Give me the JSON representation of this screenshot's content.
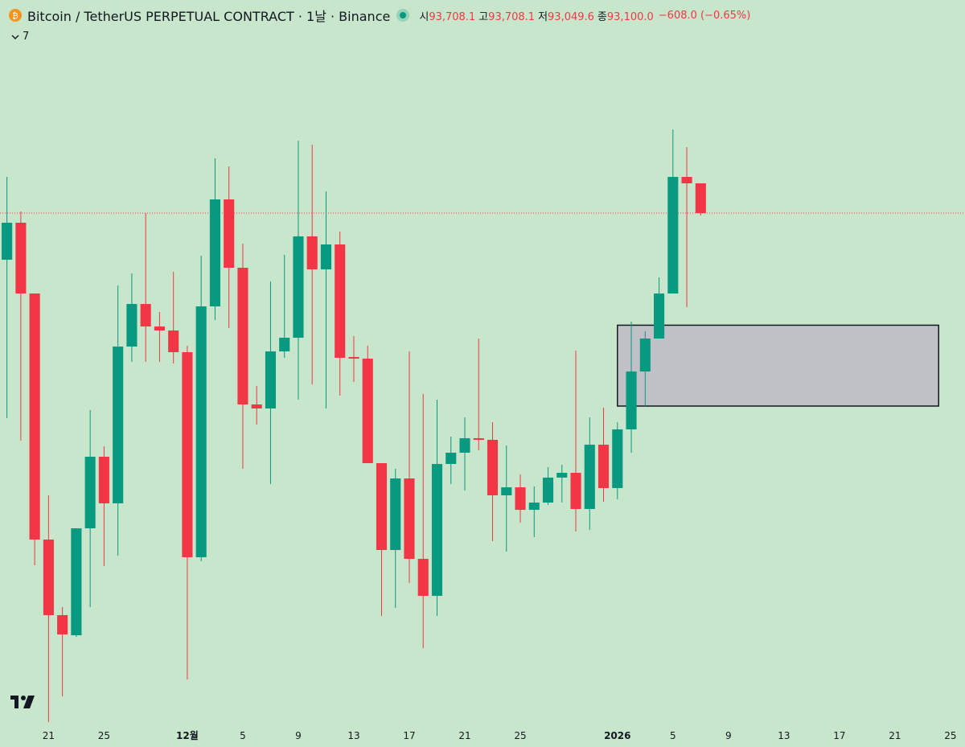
{
  "chart_data": {
    "type": "candlestick",
    "title": "Bitcoin / TetherUS PERPETUAL CONTRACT · 1날 · Binance",
    "ohlc_legend": [
      {
        "label": "시",
        "text": "93,708.1"
      },
      {
        "label": "고",
        "text": "93,708.1"
      },
      {
        "label": "저",
        "text": "93,049.6"
      },
      {
        "label": "종",
        "text": "93,100.0"
      }
    ],
    "change": "−608.0 (−0.65%)",
    "collapsed_count": 7,
    "up_color": "#089981",
    "down_color": "#f23645",
    "open": [
      92147,
      92903,
      91457,
      86429,
      84885,
      84474,
      86659,
      88122,
      87169,
      90373,
      91243,
      90783,
      90701,
      90258,
      86068,
      91194,
      93379,
      91983,
      89190,
      89108,
      90274,
      90553,
      92624,
      91950,
      92459,
      90159,
      90126,
      87990,
      86216,
      87678,
      86035,
      85279,
      87974,
      88204,
      88500,
      88467,
      87333,
      87497,
      87037,
      87185,
      87695,
      87793,
      87054,
      88368,
      87481,
      88680,
      89863,
      90537,
      91457,
      93839,
      93708.1
    ],
    "high": [
      93839,
      93133,
      91457,
      87333,
      85049,
      86659,
      89075,
      88335,
      91621,
      91868,
      93100,
      91079,
      91901,
      90389,
      92229,
      94217,
      94053,
      92476,
      89568,
      91703,
      92246,
      94579,
      94497,
      93544,
      92722,
      90586,
      90389,
      87990,
      87875,
      90274,
      89403,
      89288,
      88533,
      88927,
      90537,
      88828,
      88352,
      87760,
      87514,
      87908,
      87957,
      90291,
      88927,
      89124,
      88828,
      90882,
      90685,
      91786,
      94809,
      94447,
      93708.1
    ],
    "low": [
      88910,
      88450,
      85904,
      82700,
      83226,
      84441,
      85049,
      85887,
      86101,
      90060,
      90060,
      90060,
      90028,
      83571,
      85986,
      90915,
      90751,
      87875,
      88779,
      87563,
      90143,
      89288,
      89600,
      89108,
      89370,
      89650,
      87990,
      84869,
      85033,
      85542,
      84211,
      84869,
      87563,
      87432,
      88253,
      86397,
      86183,
      86774,
      86479,
      87136,
      87185,
      86594,
      86627,
      87202,
      87251,
      88204,
      89157,
      90537,
      91457,
      91178,
      93049.6
    ],
    "close": [
      92903,
      91457,
      86429,
      84885,
      84491,
      86659,
      88122,
      87169,
      90373,
      91243,
      90783,
      90701,
      90258,
      86068,
      91194,
      93379,
      91983,
      89190,
      89108,
      90274,
      90553,
      92624,
      91950,
      92459,
      90143,
      90126,
      87990,
      86216,
      87678,
      86035,
      85279,
      87974,
      88204,
      88500,
      88467,
      87333,
      87497,
      87037,
      87185,
      87695,
      87793,
      87054,
      88368,
      87481,
      88680,
      89863,
      90537,
      91457,
      93839,
      93708,
      93100.0
    ],
    "xlim": [
      -0.5,
      69.05
    ],
    "ylim": [
      82585,
      97454
    ],
    "xticks": [
      {
        "value": 3,
        "label": "21"
      },
      {
        "value": 7,
        "label": "25"
      },
      {
        "value": 13,
        "label": "12월",
        "strong": true
      },
      {
        "value": 17,
        "label": "5"
      },
      {
        "value": 21,
        "label": "9"
      },
      {
        "value": 25,
        "label": "13"
      },
      {
        "value": 29,
        "label": "17"
      },
      {
        "value": 33,
        "label": "21"
      },
      {
        "value": 37,
        "label": "25"
      },
      {
        "value": 44,
        "label": "2026",
        "strong": true
      },
      {
        "value": 48,
        "label": "5"
      },
      {
        "value": 52,
        "label": "9"
      },
      {
        "value": 56,
        "label": "13"
      },
      {
        "value": 60,
        "label": "17"
      },
      {
        "value": 64,
        "label": "21"
      },
      {
        "value": 68,
        "label": "25"
      }
    ],
    "price_line": true,
    "rectangle": {
      "x": [
        44,
        67.15
      ],
      "y": [
        89157,
        90809
      ],
      "color": "#bfc1c6"
    }
  }
}
